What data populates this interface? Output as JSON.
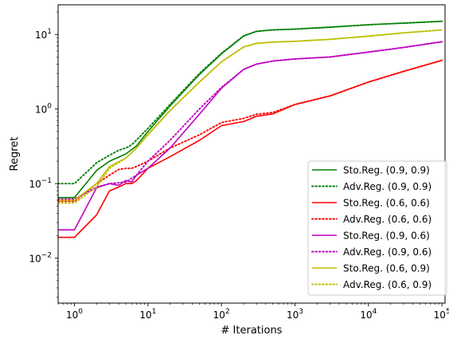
{
  "chart_data": {
    "type": "line",
    "xlabel": "# Iterations",
    "ylabel": "Regret",
    "xscale": "log",
    "yscale": "log",
    "xlim": [
      0.6,
      110000
    ],
    "ylim": [
      0.0025,
      25
    ],
    "x_ticks": [
      {
        "value": 1,
        "base": "10",
        "exp": "0"
      },
      {
        "value": 10,
        "base": "10",
        "exp": "1"
      },
      {
        "value": 100,
        "base": "10",
        "exp": "2"
      },
      {
        "value": 1000,
        "base": "10",
        "exp": "3"
      },
      {
        "value": 10000,
        "base": "10",
        "exp": "4"
      },
      {
        "value": 100000,
        "base": "10",
        "exp": "5"
      }
    ],
    "y_ticks": [
      {
        "value": 0.01,
        "base": "10",
        "exp": "−2"
      },
      {
        "value": 0.1,
        "base": "10",
        "exp": "−1"
      },
      {
        "value": 1,
        "base": "10",
        "exp": "0"
      },
      {
        "value": 10,
        "base": "10",
        "exp": "1"
      }
    ],
    "grid": false,
    "legend_position": "lower-right",
    "series": [
      {
        "name": "Sto.Reg. (0.9, 0.9)",
        "color": "#008000",
        "style": "solid",
        "x": [
          0.6,
          1,
          2,
          3,
          5,
          7,
          10,
          20,
          50,
          100,
          200,
          300,
          500,
          1000,
          3000,
          10000,
          30000,
          100000
        ],
        "y": [
          0.065,
          0.065,
          0.15,
          0.2,
          0.25,
          0.32,
          0.5,
          1.1,
          2.9,
          5.5,
          9.5,
          11,
          11.5,
          11.8,
          12.5,
          13.5,
          14.2,
          15
        ]
      },
      {
        "name": "Adv.Reg. (0.9, 0.9)",
        "color": "#008000",
        "style": "dotted",
        "x": [
          0.6,
          1,
          2,
          3,
          4,
          5,
          6,
          10,
          20,
          50,
          100,
          200,
          300,
          500,
          1000,
          3000,
          10000,
          30000,
          100000
        ],
        "y": [
          0.1,
          0.1,
          0.19,
          0.24,
          0.28,
          0.3,
          0.33,
          0.55,
          1.15,
          3.0,
          5.6,
          9.6,
          11,
          11.5,
          11.8,
          12.5,
          13.5,
          14.2,
          15
        ]
      },
      {
        "name": "Sto.Reg. (0.6, 0.6)",
        "color": "#ff0000",
        "style": "solid",
        "x": [
          0.6,
          1,
          2,
          3,
          4,
          5,
          6,
          7,
          10,
          20,
          50,
          100,
          200,
          300,
          500,
          1000,
          3000,
          10000,
          30000,
          100000
        ],
        "y": [
          0.019,
          0.019,
          0.038,
          0.08,
          0.09,
          0.1,
          0.1,
          0.11,
          0.16,
          0.23,
          0.38,
          0.6,
          0.68,
          0.8,
          0.86,
          1.15,
          1.5,
          2.3,
          3.2,
          4.5
        ]
      },
      {
        "name": "Adv.Reg. (0.6, 0.6)",
        "color": "#ff0000",
        "style": "dotted",
        "x": [
          0.6,
          1,
          2,
          3,
          4,
          5,
          6,
          7,
          10,
          20,
          50,
          100,
          200,
          300,
          500,
          1000,
          3000,
          10000,
          30000,
          100000
        ],
        "y": [
          0.058,
          0.058,
          0.1,
          0.13,
          0.155,
          0.16,
          0.16,
          0.17,
          0.2,
          0.3,
          0.45,
          0.66,
          0.75,
          0.85,
          0.9,
          1.15,
          1.5,
          2.3,
          3.2,
          4.5
        ]
      },
      {
        "name": "Sto.Reg. (0.9, 0.6)",
        "color": "#c000c0",
        "style": "solid",
        "x": [
          0.6,
          1,
          2,
          3,
          4,
          5,
          6,
          7,
          10,
          20,
          50,
          100,
          200,
          300,
          500,
          1000,
          3000,
          10000,
          30000,
          100000
        ],
        "y": [
          0.024,
          0.024,
          0.088,
          0.1,
          0.095,
          0.11,
          0.105,
          0.13,
          0.16,
          0.3,
          0.85,
          1.9,
          3.4,
          4.0,
          4.4,
          4.7,
          5.0,
          5.8,
          6.7,
          8.0
        ]
      },
      {
        "name": "Adv.Reg. (0.9, 0.6)",
        "color": "#c000c0",
        "style": "dotted",
        "x": [
          0.6,
          1,
          2,
          3,
          5,
          7,
          10,
          20,
          50,
          100,
          200,
          300,
          500,
          1000,
          3000,
          10000,
          30000,
          100000
        ],
        "y": [
          0.062,
          0.062,
          0.09,
          0.1,
          0.105,
          0.13,
          0.2,
          0.38,
          1.0,
          1.95,
          3.4,
          4.0,
          4.4,
          4.7,
          5.0,
          5.8,
          6.7,
          8.0
        ]
      },
      {
        "name": "Sto.Reg. (0.6, 0.9)",
        "color": "#bfbf00",
        "style": "solid",
        "x": [
          0.6,
          1,
          2,
          3,
          5,
          7,
          10,
          20,
          50,
          100,
          200,
          300,
          500,
          1000,
          3000,
          10000,
          30000,
          100000
        ],
        "y": [
          0.06,
          0.06,
          0.1,
          0.17,
          0.22,
          0.3,
          0.45,
          0.95,
          2.3,
          4.3,
          6.8,
          7.6,
          7.9,
          8.1,
          8.6,
          9.5,
          10.5,
          11.5
        ]
      },
      {
        "name": "Adv.Reg. (0.6, 0.9)",
        "color": "#bfbf00",
        "style": "dotted",
        "x": [
          0.6,
          1,
          2,
          3,
          5,
          7,
          10,
          20,
          50,
          100,
          200,
          300,
          500,
          1000,
          3000,
          10000,
          30000,
          100000
        ],
        "y": [
          0.055,
          0.055,
          0.09,
          0.16,
          0.22,
          0.3,
          0.46,
          0.96,
          2.3,
          4.3,
          6.8,
          7.6,
          7.9,
          8.1,
          8.6,
          9.5,
          10.5,
          11.5
        ]
      }
    ]
  }
}
